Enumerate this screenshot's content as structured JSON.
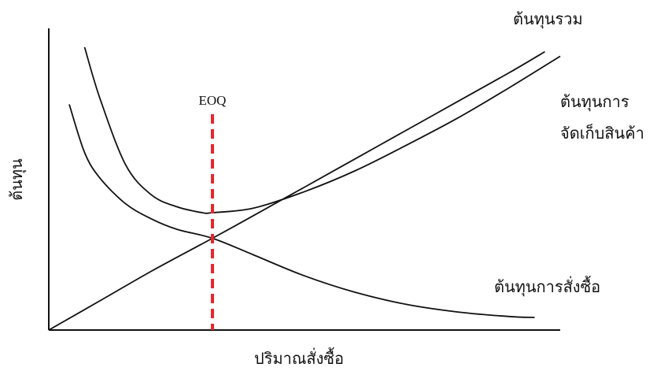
{
  "chart_data": {
    "type": "line",
    "title": "",
    "xlabel": "ปริมาณสั่งซื้อ",
    "ylabel": "ต้นทุน",
    "xlim": [
      0,
      10
    ],
    "ylim": [
      0,
      10
    ],
    "grid": false,
    "legend": "none",
    "series": [
      {
        "name": "ต้นทุนรวม",
        "color": "#111111",
        "x": [
          0.7,
          1.0,
          1.5,
          2.0,
          2.5,
          3.0,
          3.2,
          4.0,
          5.0,
          6.0,
          7.0,
          8.0,
          9.0,
          10.0
        ],
        "y": [
          9.4,
          7.7,
          5.5,
          4.5,
          4.1,
          3.9,
          3.9,
          4.05,
          4.6,
          5.3,
          6.15,
          7.05,
          8.05,
          9.1
        ]
      },
      {
        "name": "ต้นทุนการ\nจัดเก็บสินค้า",
        "color": "#111111",
        "x": [
          0,
          1.0,
          2.0,
          3.2,
          4.0,
          5.0,
          6.0,
          7.0,
          8.0,
          9.0,
          9.7
        ],
        "y": [
          0,
          0.97,
          1.95,
          3.05,
          3.8,
          4.75,
          5.7,
          6.65,
          7.6,
          8.55,
          9.25
        ]
      },
      {
        "name": "ต้นทุนการสั่งซื้อ",
        "color": "#111111",
        "x": [
          0.4,
          0.7,
          1.0,
          1.5,
          2.0,
          2.5,
          3.2,
          4.0,
          5.0,
          6.0,
          7.0,
          8.0,
          9.0,
          9.5
        ],
        "y": [
          7.5,
          5.9,
          5.05,
          4.2,
          3.7,
          3.35,
          3.05,
          2.5,
          1.8,
          1.25,
          0.85,
          0.6,
          0.45,
          0.42
        ]
      }
    ],
    "annotations": [
      {
        "text": "EOQ",
        "x": 3.2,
        "type": "dashed-vertical-line",
        "color": "#e8262c"
      }
    ]
  }
}
